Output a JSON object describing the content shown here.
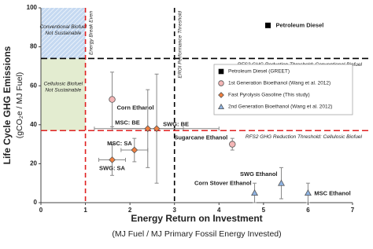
{
  "chart_data": {
    "type": "scatter",
    "x_label": "Energy Return on Investment",
    "x_sublabel": "(MJ Fuel / MJ Primary Fossil Energy Invested)",
    "y_label": "Life Cycle GHG Emissions",
    "y_sublabel": "(gCO₂e / MJ Fuel)",
    "xlim": [
      0,
      7
    ],
    "xticks": [
      0,
      1,
      2,
      3,
      4,
      5,
      6,
      7
    ],
    "ylim": [
      0,
      100
    ],
    "yticks": [
      0,
      20,
      40,
      60,
      80,
      100
    ],
    "legend": "right",
    "regions": [
      {
        "x": [
          0,
          1
        ],
        "y": [
          74,
          100
        ],
        "color": "#c5d9f1",
        "label": "Conventional Biofuel Not Sustainable"
      },
      {
        "x": [
          0,
          1
        ],
        "y": [
          37,
          74
        ],
        "color": "#e3ecd0",
        "label": "Cellulosic Biofuel Not Sustainable"
      }
    ],
    "reference_lines": [
      {
        "axis": "x",
        "value": 1,
        "color": "#e02020",
        "label": "Energy Break Even"
      },
      {
        "axis": "x",
        "value": 3,
        "color": "#000000",
        "label": "EROI Performance Threshold"
      },
      {
        "axis": "y",
        "value": 74,
        "color": "#000000",
        "label": "RFS2 GHG Reduction Threshold: Conventional Biofuel"
      },
      {
        "axis": "y",
        "value": 37,
        "color": "#e02020",
        "label": "RFS2 GHG Reduction Threshold: Cellulosic Biofuel"
      }
    ],
    "series": [
      {
        "name": "Petroleum Diesel (GREET)",
        "marker": "square",
        "color": "#000000",
        "x": [
          5.1
        ],
        "values": [
          91
        ],
        "xerr": [
          null
        ],
        "yerr": [
          null
        ],
        "labels": [
          "Petroleum Diesel"
        ]
      },
      {
        "name": "1st Generation Bioethanol (Wang et al. 2012)",
        "marker": "circle",
        "color": "#f4b6b6",
        "x": [
          1.6,
          4.3
        ],
        "values": [
          53,
          30
        ],
        "xerr": [
          null,
          null
        ],
        "yerr": [
          14,
          3
        ],
        "labels": [
          "Corn Ethanol",
          "Sugarcane Ethanol"
        ]
      },
      {
        "name": "Fast Pyrolysis Gasoline (This study)",
        "marker": "diamond",
        "color": "#f08040",
        "x": [
          2.4,
          2.6,
          2.1,
          1.6
        ],
        "values": [
          38,
          38,
          27,
          22
        ],
        "xerr": [
          0.8,
          1.4,
          0.3,
          0.3
        ],
        "yerr": [
          20,
          28,
          6,
          8
        ],
        "labels": [
          "MSC: BE",
          "SWG: BE",
          "MSC: SA",
          "SWG: SA"
        ]
      },
      {
        "name": "2nd Generation Bioethanol (Wang et al. 2012)",
        "marker": "triangle",
        "color": "#8fb4e3",
        "x": [
          4.8,
          5.4,
          6.0
        ],
        "values": [
          5,
          10,
          5
        ],
        "xerr": [
          null,
          null,
          null
        ],
        "yerr": [
          5,
          8,
          5
        ],
        "labels": [
          "Corn Stover Ethanol",
          "SWG Ethanol",
          "MSC Ethanol"
        ]
      }
    ]
  }
}
